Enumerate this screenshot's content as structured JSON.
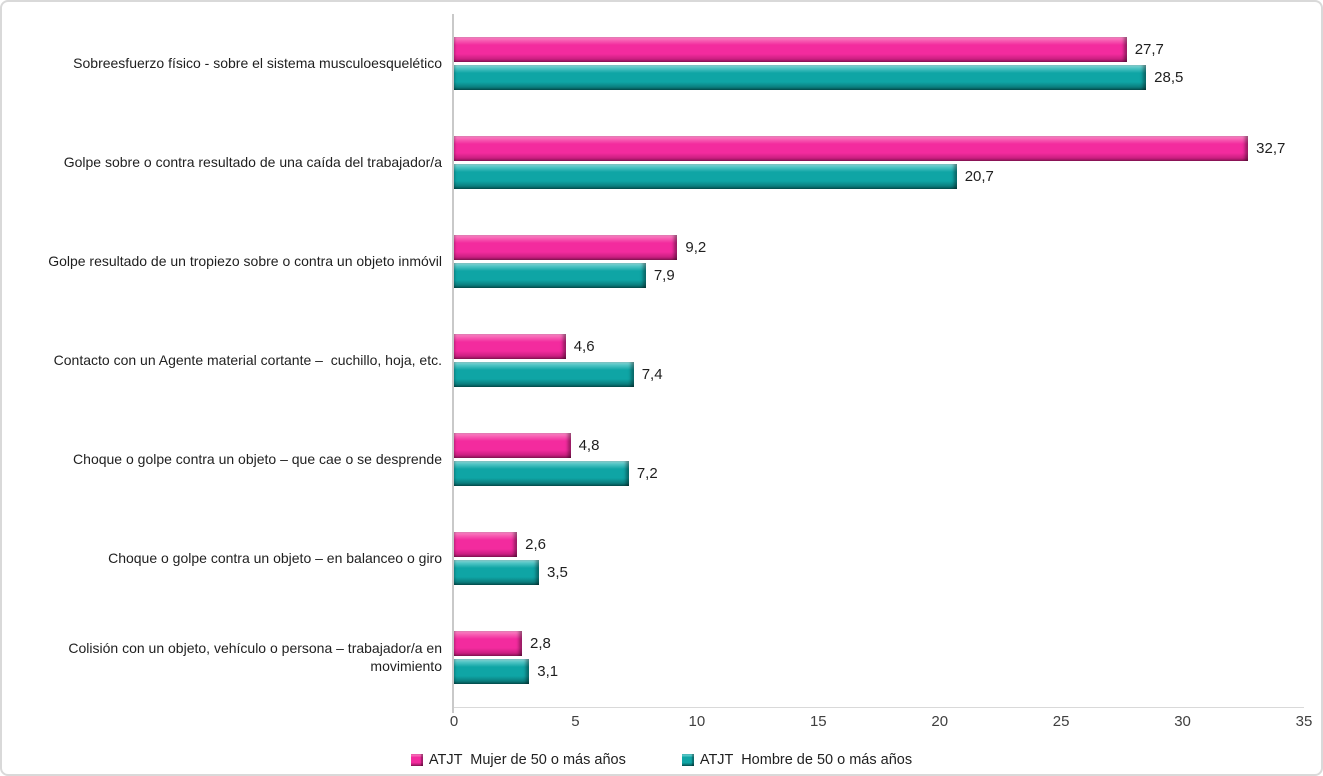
{
  "chart_data": {
    "type": "bar",
    "orientation": "horizontal",
    "title": "",
    "xlabel": "",
    "ylabel": "",
    "xlim": [
      0,
      35
    ],
    "x_ticks": [
      "0",
      "5",
      "10",
      "15",
      "20",
      "25",
      "30",
      "35"
    ],
    "grid": false,
    "legend_position": "bottom",
    "value_label_decimal_separator": "comma",
    "categories": [
      "Sobreesfuerzo físico - sobre el sistema musculoesquelético",
      "Golpe sobre o contra resultado de una caída del trabajador/a",
      "Golpe resultado de un tropiezo sobre o contra un objeto inmóvil",
      "Contacto con un Agente material cortante –  cuchillo, hoja, etc.",
      "Choque o golpe contra un objeto – que cae o se desprende",
      "Choque o golpe contra un objeto – en balanceo o giro",
      "Colisión con un objeto, vehículo o persona – trabajador/a en movimiento"
    ],
    "series": [
      {
        "name": "ATJT  Mujer de 50 o más años",
        "color": "#F32B9E",
        "values": [
          27.7,
          32.7,
          9.2,
          4.6,
          4.8,
          2.6,
          2.8
        ],
        "labels": [
          "27,7",
          "32,7",
          "9,2",
          "4,6",
          "4,8",
          "2,6",
          "2,8"
        ]
      },
      {
        "name": "ATJT  Hombre de 50 o más años",
        "color": "#0FA5A5",
        "values": [
          28.5,
          20.7,
          7.9,
          7.4,
          7.2,
          3.5,
          3.1
        ],
        "labels": [
          "28,5",
          "20,7",
          "7,9",
          "7,4",
          "7,2",
          "3,5",
          "3,1"
        ]
      }
    ]
  }
}
